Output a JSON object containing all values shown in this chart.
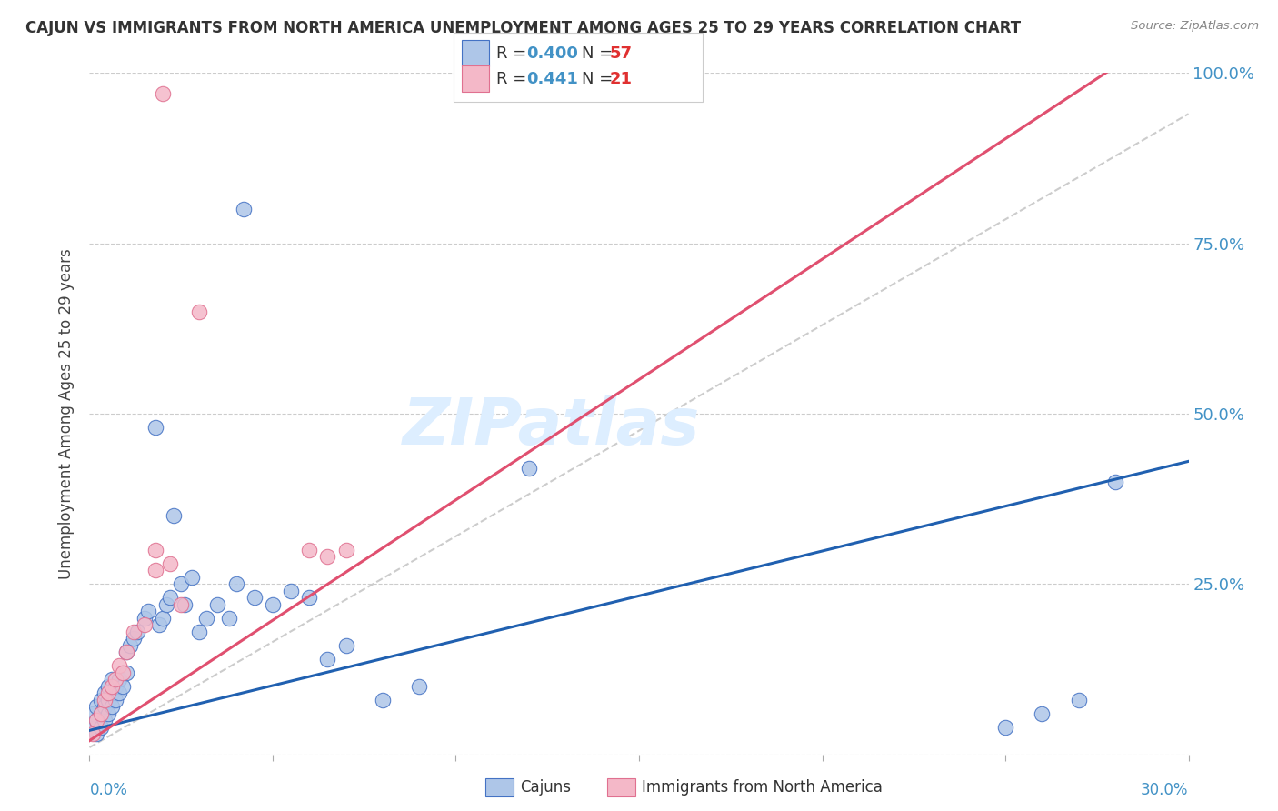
{
  "title": "CAJUN VS IMMIGRANTS FROM NORTH AMERICA UNEMPLOYMENT AMONG AGES 25 TO 29 YEARS CORRELATION CHART",
  "source": "Source: ZipAtlas.com",
  "ylabel": "Unemployment Among Ages 25 to 29 years",
  "xlim": [
    0,
    0.3
  ],
  "ylim": [
    0,
    1.0
  ],
  "ytick_labels": [
    "25.0%",
    "50.0%",
    "75.0%",
    "100.0%"
  ],
  "ytick_values": [
    0.25,
    0.5,
    0.75,
    1.0
  ],
  "cajun_color": "#aec6e8",
  "cajun_edge_color": "#4472c4",
  "immigrant_color": "#f4b8c8",
  "immigrant_edge_color": "#e07090",
  "cajun_line_color": "#2060b0",
  "immigrant_line_color": "#e05070",
  "dash_line_color": "#cccccc",
  "right_label_color": "#4292c6",
  "background_color": "#ffffff",
  "watermark_text": "ZIPatlas",
  "watermark_color": "#ddeeff",
  "legend_R_color": "#4292c6",
  "legend_N_color": "#e03030",
  "cajun_x": [
    0.001,
    0.001,
    0.002,
    0.002,
    0.002,
    0.003,
    0.003,
    0.003,
    0.004,
    0.004,
    0.004,
    0.005,
    0.005,
    0.005,
    0.006,
    0.006,
    0.006,
    0.007,
    0.007,
    0.008,
    0.008,
    0.009,
    0.01,
    0.01,
    0.011,
    0.012,
    0.013,
    0.015,
    0.016,
    0.018,
    0.019,
    0.02,
    0.021,
    0.022,
    0.023,
    0.025,
    0.026,
    0.028,
    0.03,
    0.032,
    0.035,
    0.038,
    0.04,
    0.042,
    0.045,
    0.05,
    0.055,
    0.06,
    0.065,
    0.07,
    0.08,
    0.09,
    0.12,
    0.25,
    0.26,
    0.27,
    0.28
  ],
  "cajun_y": [
    0.04,
    0.06,
    0.03,
    0.05,
    0.07,
    0.04,
    0.06,
    0.08,
    0.05,
    0.07,
    0.09,
    0.06,
    0.08,
    0.1,
    0.07,
    0.09,
    0.11,
    0.08,
    0.1,
    0.09,
    0.11,
    0.1,
    0.12,
    0.15,
    0.16,
    0.17,
    0.18,
    0.2,
    0.21,
    0.48,
    0.19,
    0.2,
    0.22,
    0.23,
    0.35,
    0.25,
    0.22,
    0.26,
    0.18,
    0.2,
    0.22,
    0.2,
    0.25,
    0.8,
    0.23,
    0.22,
    0.24,
    0.23,
    0.14,
    0.16,
    0.08,
    0.1,
    0.42,
    0.04,
    0.06,
    0.08,
    0.4
  ],
  "immigrant_x": [
    0.001,
    0.002,
    0.003,
    0.004,
    0.005,
    0.006,
    0.007,
    0.008,
    0.009,
    0.01,
    0.012,
    0.015,
    0.018,
    0.02,
    0.022,
    0.025,
    0.03,
    0.06,
    0.065,
    0.07,
    0.018
  ],
  "immigrant_y": [
    0.03,
    0.05,
    0.06,
    0.08,
    0.09,
    0.1,
    0.11,
    0.13,
    0.12,
    0.15,
    0.18,
    0.19,
    0.27,
    0.97,
    0.28,
    0.22,
    0.65,
    0.3,
    0.29,
    0.3,
    0.3
  ]
}
